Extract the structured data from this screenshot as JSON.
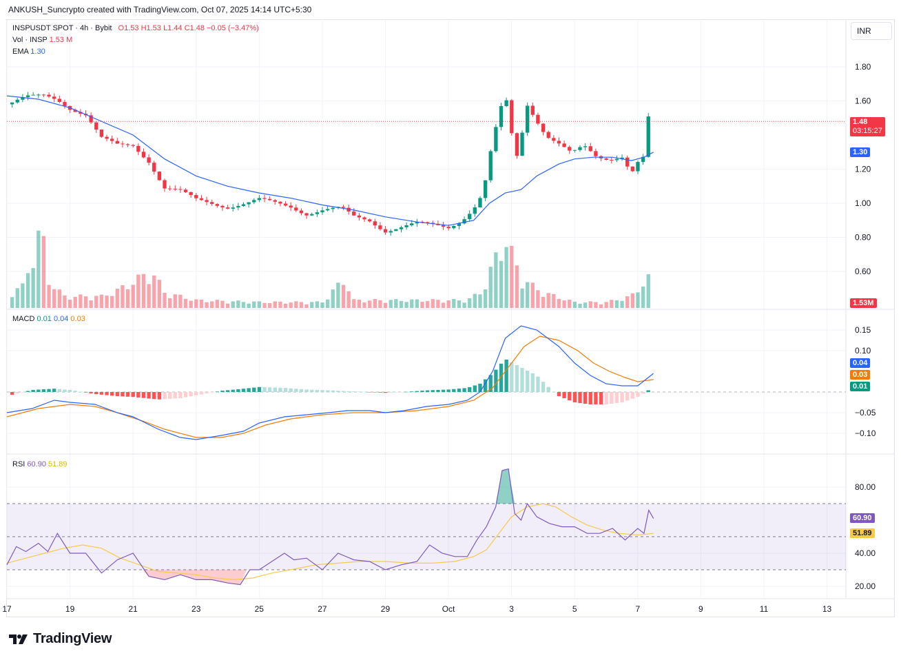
{
  "caption": "ANKUSH_Suncrypto created with TradingView.com, Oct 07, 2025 14:14 UTC+5:30",
  "currency": "INR",
  "brand": "TradingView",
  "icons": {
    "brand_logo": "tradingview-logo-icon"
  },
  "colors": {
    "up": "#089981",
    "down": "#f23645",
    "ema": "#2962ff",
    "macd": "#2962ff",
    "signal": "#f57c00",
    "rsi": "#7e57c2",
    "rsi_ma": "#f7c948",
    "grid": "#f0f3fa"
  },
  "legend": {
    "symbol": "INSPUSDT SPOT · 4h · Bybit",
    "open": "O1.53",
    "high": "H1.53",
    "low": "L1.44",
    "close": "C1.48",
    "change": "−0.05 (−3.47%)",
    "vol_label": "Vol · INSP",
    "vol_value": "1.53 M",
    "ema_label": "EMA",
    "ema_value": "1.30",
    "macd_label": "MACD",
    "macd_hist": "0.01",
    "macd_line": "0.04",
    "macd_signal": "0.03",
    "rsi_label": "RSI",
    "rsi_value": "60.90",
    "rsi_ma": "51.89"
  },
  "badges": {
    "last_price": "1.48",
    "countdown": "03:15:27",
    "ema": "1.30",
    "volume": "1.53M",
    "macd_line": "0.04",
    "macd_signal": "0.03",
    "macd_hist": "0.01",
    "rsi": "60.90",
    "rsi_ma": "51.89"
  },
  "chart_data": [
    {
      "type": "candlestick",
      "title": "INSPUSDT SPOT · 4h · Bybit",
      "ylim": [
        0.7,
        1.9
      ],
      "yticks": [
        "1.80",
        "1.60",
        "1.20",
        "1.00",
        "0.80",
        "0.60"
      ],
      "xticks": [
        "17",
        "19",
        "21",
        "23",
        "25",
        "27",
        "29",
        "Oct",
        "3",
        "5",
        "7",
        "9",
        "11",
        "13"
      ],
      "x_days": [
        17,
        19,
        21,
        23,
        25,
        27,
        29,
        31,
        33,
        35,
        37,
        39,
        41,
        43
      ],
      "x_range": [
        17,
        43.6
      ],
      "last_price": 1.48,
      "ema_last": 1.3,
      "close_path": [
        [
          17.0,
          1.58
        ],
        [
          17.6,
          1.62
        ],
        [
          18.2,
          1.63
        ],
        [
          18.6,
          1.61
        ],
        [
          19.0,
          1.56
        ],
        [
          19.5,
          1.52
        ],
        [
          20.0,
          1.38
        ],
        [
          20.5,
          1.34
        ],
        [
          21.0,
          1.34
        ],
        [
          21.5,
          1.25
        ],
        [
          22.0,
          1.09
        ],
        [
          22.5,
          1.07
        ],
        [
          23.0,
          1.02
        ],
        [
          23.5,
          1.0
        ],
        [
          24.0,
          0.98
        ],
        [
          24.6,
          1.0
        ],
        [
          25.0,
          1.02
        ],
        [
          25.5,
          1.0
        ],
        [
          26.0,
          0.98
        ],
        [
          26.5,
          0.94
        ],
        [
          27.0,
          0.96
        ],
        [
          27.6,
          0.97
        ],
        [
          28.0,
          0.92
        ],
        [
          28.5,
          0.9
        ],
        [
          29.0,
          0.84
        ],
        [
          29.5,
          0.86
        ],
        [
          30.0,
          0.88
        ],
        [
          30.6,
          0.87
        ],
        [
          31.0,
          0.86
        ],
        [
          31.4,
          0.9
        ],
        [
          31.8,
          0.97
        ],
        [
          32.1,
          1.06
        ],
        [
          32.4,
          1.36
        ],
        [
          32.7,
          1.58
        ],
        [
          32.9,
          1.6
        ],
        [
          33.1,
          1.22
        ],
        [
          33.3,
          1.38
        ],
        [
          33.5,
          1.58
        ],
        [
          33.8,
          1.49
        ],
        [
          34.1,
          1.4
        ],
        [
          34.5,
          1.35
        ],
        [
          34.9,
          1.29
        ],
        [
          35.3,
          1.33
        ],
        [
          35.7,
          1.27
        ],
        [
          36.1,
          1.26
        ],
        [
          36.5,
          1.28
        ],
        [
          36.8,
          1.18
        ],
        [
          37.0,
          1.24
        ],
        [
          37.2,
          1.27
        ],
        [
          37.35,
          1.52
        ],
        [
          37.5,
          1.48
        ]
      ],
      "ema_path": [
        [
          17.0,
          1.63
        ],
        [
          18.0,
          1.61
        ],
        [
          19.0,
          1.56
        ],
        [
          20.0,
          1.48
        ],
        [
          21.0,
          1.4
        ],
        [
          22.0,
          1.26
        ],
        [
          23.0,
          1.16
        ],
        [
          24.0,
          1.1
        ],
        [
          25.0,
          1.06
        ],
        [
          26.0,
          1.03
        ],
        [
          27.0,
          0.99
        ],
        [
          28.0,
          0.96
        ],
        [
          29.0,
          0.92
        ],
        [
          30.0,
          0.89
        ],
        [
          31.0,
          0.87
        ],
        [
          31.8,
          0.9
        ],
        [
          32.3,
          1.0
        ],
        [
          32.8,
          1.06
        ],
        [
          33.3,
          1.08
        ],
        [
          33.8,
          1.16
        ],
        [
          34.5,
          1.23
        ],
        [
          35.0,
          1.26
        ],
        [
          35.6,
          1.27
        ],
        [
          36.2,
          1.27
        ],
        [
          36.8,
          1.25
        ],
        [
          37.2,
          1.27
        ],
        [
          37.5,
          1.3
        ]
      ]
    },
    {
      "type": "bar",
      "title": "Vol · INSP",
      "unit": "M",
      "last_value": 1.53,
      "profile": [
        [
          17.0,
          0.8
        ],
        [
          17.5,
          1.1
        ],
        [
          17.8,
          2.6
        ],
        [
          18.1,
          4.2
        ],
        [
          18.3,
          1.5
        ],
        [
          18.8,
          0.6
        ],
        [
          20.0,
          0.6
        ],
        [
          20.5,
          0.9
        ],
        [
          21.6,
          1.9
        ],
        [
          22.0,
          0.8
        ],
        [
          23.0,
          0.4
        ],
        [
          25.0,
          0.3
        ],
        [
          27.0,
          0.3
        ],
        [
          27.7,
          1.5
        ],
        [
          28.0,
          0.4
        ],
        [
          29.0,
          0.4
        ],
        [
          30.0,
          0.4
        ],
        [
          31.0,
          0.4
        ],
        [
          31.6,
          0.4
        ],
        [
          32.1,
          0.9
        ],
        [
          32.5,
          2.6
        ],
        [
          32.8,
          3.6
        ],
        [
          33.3,
          1.6
        ],
        [
          33.6,
          1.2
        ],
        [
          34.0,
          0.8
        ],
        [
          35.0,
          0.3
        ],
        [
          36.0,
          0.3
        ],
        [
          36.8,
          0.6
        ],
        [
          37.3,
          1.53
        ]
      ]
    },
    {
      "type": "line",
      "title": "MACD",
      "ylim": [
        -0.14,
        0.19
      ],
      "yticks": [
        "0.15",
        "0.10",
        "−0.05",
        "−0.10"
      ],
      "last_macd": 0.04,
      "last_signal": 0.03,
      "last_hist": 0.01,
      "macd_path": [
        [
          17.0,
          -0.05
        ],
        [
          17.8,
          -0.04
        ],
        [
          18.5,
          -0.02
        ],
        [
          19.0,
          -0.025
        ],
        [
          19.8,
          -0.03
        ],
        [
          20.5,
          -0.05
        ],
        [
          21.0,
          -0.06
        ],
        [
          21.8,
          -0.09
        ],
        [
          22.5,
          -0.11
        ],
        [
          23.0,
          -0.115
        ],
        [
          23.8,
          -0.105
        ],
        [
          24.5,
          -0.095
        ],
        [
          25.0,
          -0.075
        ],
        [
          25.8,
          -0.06
        ],
        [
          26.5,
          -0.055
        ],
        [
          27.2,
          -0.05
        ],
        [
          27.8,
          -0.045
        ],
        [
          28.5,
          -0.045
        ],
        [
          29.0,
          -0.05
        ],
        [
          29.6,
          -0.045
        ],
        [
          30.3,
          -0.035
        ],
        [
          31.0,
          -0.03
        ],
        [
          31.6,
          -0.02
        ],
        [
          32.0,
          0.0
        ],
        [
          32.4,
          0.05
        ],
        [
          32.8,
          0.13
        ],
        [
          33.3,
          0.16
        ],
        [
          33.8,
          0.15
        ],
        [
          34.5,
          0.11
        ],
        [
          35.0,
          0.07
        ],
        [
          35.5,
          0.04
        ],
        [
          36.0,
          0.02
        ],
        [
          36.5,
          0.015
        ],
        [
          37.0,
          0.015
        ],
        [
          37.5,
          0.045
        ]
      ],
      "signal_path": [
        [
          17.0,
          -0.06
        ],
        [
          18.0,
          -0.04
        ],
        [
          19.0,
          -0.03
        ],
        [
          19.8,
          -0.035
        ],
        [
          20.5,
          -0.05
        ],
        [
          21.3,
          -0.07
        ],
        [
          22.0,
          -0.09
        ],
        [
          23.0,
          -0.11
        ],
        [
          23.8,
          -0.11
        ],
        [
          24.5,
          -0.1
        ],
        [
          25.2,
          -0.08
        ],
        [
          26.0,
          -0.065
        ],
        [
          27.0,
          -0.055
        ],
        [
          28.0,
          -0.05
        ],
        [
          29.0,
          -0.05
        ],
        [
          30.0,
          -0.045
        ],
        [
          31.0,
          -0.035
        ],
        [
          31.8,
          -0.02
        ],
        [
          32.4,
          0.01
        ],
        [
          32.9,
          0.06
        ],
        [
          33.4,
          0.11
        ],
        [
          33.9,
          0.135
        ],
        [
          34.5,
          0.125
        ],
        [
          35.1,
          0.1
        ],
        [
          35.6,
          0.07
        ],
        [
          36.1,
          0.05
        ],
        [
          36.6,
          0.035
        ],
        [
          37.0,
          0.025
        ],
        [
          37.5,
          0.03
        ]
      ],
      "hist_profile": [
        [
          17.0,
          -0.01
        ],
        [
          17.8,
          0.005
        ],
        [
          18.5,
          0.008
        ],
        [
          19.0,
          0.005
        ],
        [
          19.8,
          -0.005
        ],
        [
          20.5,
          -0.01
        ],
        [
          21.0,
          -0.012
        ],
        [
          21.8,
          -0.018
        ],
        [
          22.5,
          -0.015
        ],
        [
          23.0,
          -0.008
        ],
        [
          23.8,
          0.003
        ],
        [
          24.5,
          0.008
        ],
        [
          25.0,
          0.012
        ],
        [
          25.8,
          0.01
        ],
        [
          26.5,
          0.006
        ],
        [
          27.2,
          0.004
        ],
        [
          27.8,
          0.002
        ],
        [
          28.5,
          0.0
        ],
        [
          29.0,
          -0.002
        ],
        [
          29.6,
          0.0
        ],
        [
          30.3,
          0.004
        ],
        [
          31.0,
          0.006
        ],
        [
          31.6,
          0.01
        ],
        [
          32.0,
          0.02
        ],
        [
          32.4,
          0.045
        ],
        [
          32.8,
          0.08
        ],
        [
          33.3,
          0.06
        ],
        [
          33.8,
          0.04
        ],
        [
          34.2,
          0.01
        ],
        [
          34.5,
          -0.01
        ],
        [
          35.0,
          -0.025
        ],
        [
          35.5,
          -0.03
        ],
        [
          36.0,
          -0.03
        ],
        [
          36.5,
          -0.025
        ],
        [
          37.0,
          -0.012
        ],
        [
          37.5,
          0.012
        ]
      ]
    },
    {
      "type": "line",
      "title": "RSI",
      "ylim": [
        14,
        96
      ],
      "yticks": [
        "80.00",
        "40.00",
        "20.00"
      ],
      "overbought": 70,
      "middle": 50,
      "oversold": 30,
      "last_rsi": 60.9,
      "last_ma": 51.89,
      "rsi_path": [
        [
          17.0,
          33
        ],
        [
          17.3,
          44
        ],
        [
          17.6,
          41
        ],
        [
          18.0,
          46
        ],
        [
          18.3,
          41
        ],
        [
          18.6,
          52
        ],
        [
          19.0,
          40
        ],
        [
          19.5,
          40
        ],
        [
          20.0,
          28
        ],
        [
          20.5,
          36
        ],
        [
          21.0,
          40
        ],
        [
          21.5,
          26
        ],
        [
          22.0,
          24
        ],
        [
          22.5,
          27
        ],
        [
          23.0,
          24
        ],
        [
          23.5,
          24
        ],
        [
          24.0,
          22
        ],
        [
          24.4,
          21
        ],
        [
          24.7,
          30
        ],
        [
          25.0,
          30
        ],
        [
          25.4,
          35
        ],
        [
          25.8,
          40
        ],
        [
          26.1,
          36
        ],
        [
          26.5,
          37
        ],
        [
          27.0,
          30
        ],
        [
          27.5,
          40
        ],
        [
          28.0,
          36
        ],
        [
          28.5,
          35
        ],
        [
          29.0,
          30
        ],
        [
          29.5,
          33
        ],
        [
          30.0,
          35
        ],
        [
          30.4,
          45
        ],
        [
          30.8,
          40
        ],
        [
          31.2,
          38
        ],
        [
          31.6,
          38
        ],
        [
          31.9,
          48
        ],
        [
          32.2,
          56
        ],
        [
          32.5,
          68
        ],
        [
          32.7,
          90
        ],
        [
          32.9,
          91
        ],
        [
          33.1,
          64
        ],
        [
          33.3,
          60
        ],
        [
          33.5,
          70
        ],
        [
          33.8,
          62
        ],
        [
          34.2,
          58
        ],
        [
          34.6,
          56
        ],
        [
          35.0,
          56
        ],
        [
          35.4,
          52
        ],
        [
          35.8,
          52
        ],
        [
          36.2,
          55
        ],
        [
          36.6,
          48
        ],
        [
          37.0,
          55
        ],
        [
          37.2,
          52
        ],
        [
          37.35,
          66
        ],
        [
          37.5,
          61
        ]
      ],
      "ma_path": [
        [
          17.0,
          34
        ],
        [
          17.6,
          37
        ],
        [
          18.2,
          40
        ],
        [
          18.8,
          43
        ],
        [
          19.4,
          45
        ],
        [
          20.0,
          43
        ],
        [
          20.6,
          37
        ],
        [
          21.2,
          33
        ],
        [
          21.8,
          29
        ],
        [
          22.4,
          28
        ],
        [
          23.0,
          27
        ],
        [
          23.6,
          25
        ],
        [
          24.2,
          24
        ],
        [
          24.8,
          25
        ],
        [
          25.4,
          28
        ],
        [
          26.0,
          30
        ],
        [
          26.8,
          33
        ],
        [
          27.5,
          34
        ],
        [
          28.2,
          35
        ],
        [
          29.0,
          35
        ],
        [
          29.8,
          34
        ],
        [
          30.5,
          34
        ],
        [
          31.2,
          35
        ],
        [
          31.8,
          38
        ],
        [
          32.2,
          42
        ],
        [
          32.6,
          52
        ],
        [
          33.0,
          62
        ],
        [
          33.5,
          68
        ],
        [
          34.0,
          70
        ],
        [
          34.4,
          68
        ],
        [
          34.9,
          62
        ],
        [
          35.4,
          57
        ],
        [
          35.9,
          54
        ],
        [
          36.4,
          52
        ],
        [
          37.0,
          51
        ],
        [
          37.5,
          52
        ]
      ]
    }
  ]
}
